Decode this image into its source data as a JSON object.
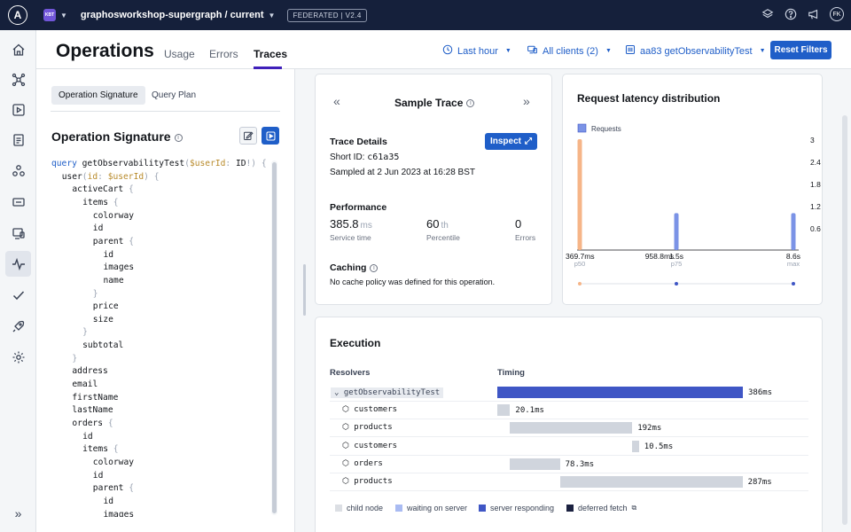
{
  "topbar": {
    "logo": "A",
    "org_badge": "KBT",
    "graph_name": "graphosworkshop-supergraph / current",
    "federated_badge": "FEDERATED | V2.4",
    "avatar": "FK",
    "icons": [
      "layers-icon",
      "help-icon",
      "megaphone-icon"
    ]
  },
  "nav": {
    "icons": [
      "home-icon",
      "schema-icon",
      "explorer-icon",
      "checks-icon",
      "subgraphs-icon",
      "clients-icon",
      "monitor-icon",
      "insights-icon",
      "check-icon",
      "launch-icon",
      "settings-icon"
    ],
    "expand_icon": "double-chevron-right-icon"
  },
  "header": {
    "title": "Operations",
    "tabs": [
      {
        "label": "Usage",
        "active": false
      },
      {
        "label": "Errors",
        "active": false
      },
      {
        "label": "Traces",
        "active": true
      }
    ],
    "filters": {
      "time": "Last hour",
      "clients": "All clients (2)",
      "operation": "aa83 getObservabilityTest"
    },
    "reset_label": "Reset Filters"
  },
  "left_panel": {
    "subtabs": [
      "Operation Signature",
      "Query Plan"
    ],
    "active_subtab": "Operation Signature",
    "title": "Operation Signature",
    "code_lines": [
      {
        "indent": 0,
        "parts": [
          [
            "kw",
            "query "
          ],
          [
            "t",
            "getObservabilityTest"
          ],
          [
            "pun",
            "("
          ],
          [
            "var",
            "$userId"
          ],
          [
            "pun",
            ": "
          ],
          [
            "t",
            "ID"
          ],
          [
            "pun",
            "!) {"
          ]
        ]
      },
      {
        "indent": 1,
        "parts": [
          [
            "t",
            "user"
          ],
          [
            "pun",
            "("
          ],
          [
            "var",
            "id"
          ],
          [
            "pun",
            ": "
          ],
          [
            "var",
            "$userId"
          ],
          [
            "pun",
            ") {"
          ]
        ]
      },
      {
        "indent": 2,
        "parts": [
          [
            "t",
            "activeCart "
          ],
          [
            "pun",
            "{"
          ]
        ]
      },
      {
        "indent": 3,
        "parts": [
          [
            "t",
            "items "
          ],
          [
            "pun",
            "{"
          ]
        ]
      },
      {
        "indent": 4,
        "parts": [
          [
            "t",
            "colorway"
          ]
        ]
      },
      {
        "indent": 4,
        "parts": [
          [
            "t",
            "id"
          ]
        ]
      },
      {
        "indent": 4,
        "parts": [
          [
            "t",
            "parent "
          ],
          [
            "pun",
            "{"
          ]
        ]
      },
      {
        "indent": 5,
        "parts": [
          [
            "t",
            "id"
          ]
        ]
      },
      {
        "indent": 5,
        "parts": [
          [
            "t",
            "images"
          ]
        ]
      },
      {
        "indent": 5,
        "parts": [
          [
            "t",
            "name"
          ]
        ]
      },
      {
        "indent": 4,
        "parts": [
          [
            "pun",
            "}"
          ]
        ]
      },
      {
        "indent": 4,
        "parts": [
          [
            "t",
            "price"
          ]
        ]
      },
      {
        "indent": 4,
        "parts": [
          [
            "t",
            "size"
          ]
        ]
      },
      {
        "indent": 3,
        "parts": [
          [
            "pun",
            "}"
          ]
        ]
      },
      {
        "indent": 3,
        "parts": [
          [
            "t",
            "subtotal"
          ]
        ]
      },
      {
        "indent": 2,
        "parts": [
          [
            "pun",
            "}"
          ]
        ]
      },
      {
        "indent": 2,
        "parts": [
          [
            "t",
            "address"
          ]
        ]
      },
      {
        "indent": 2,
        "parts": [
          [
            "t",
            "email"
          ]
        ]
      },
      {
        "indent": 2,
        "parts": [
          [
            "t",
            "firstName"
          ]
        ]
      },
      {
        "indent": 2,
        "parts": [
          [
            "t",
            "lastName"
          ]
        ]
      },
      {
        "indent": 2,
        "parts": [
          [
            "t",
            "orders "
          ],
          [
            "pun",
            "{"
          ]
        ]
      },
      {
        "indent": 3,
        "parts": [
          [
            "t",
            "id"
          ]
        ]
      },
      {
        "indent": 3,
        "parts": [
          [
            "t",
            "items "
          ],
          [
            "pun",
            "{"
          ]
        ]
      },
      {
        "indent": 4,
        "parts": [
          [
            "t",
            "colorway"
          ]
        ]
      },
      {
        "indent": 4,
        "parts": [
          [
            "t",
            "id"
          ]
        ]
      },
      {
        "indent": 4,
        "parts": [
          [
            "t",
            "parent "
          ],
          [
            "pun",
            "{"
          ]
        ]
      },
      {
        "indent": 5,
        "parts": [
          [
            "t",
            "id"
          ]
        ]
      },
      {
        "indent": 5,
        "parts": [
          [
            "t",
            "images"
          ]
        ]
      }
    ]
  },
  "sample_trace": {
    "title": "Sample Trace",
    "details_heading": "Trace Details",
    "inspect_label": "Inspect",
    "short_id_label": "Short ID:",
    "short_id": "c61a35",
    "sampled_at": "Sampled at 2 Jun 2023 at 16:28 BST",
    "performance_heading": "Performance",
    "service_time_value": "385.8",
    "service_time_unit": "ms",
    "service_time_label": "Service time",
    "percentile_value": "60",
    "percentile_unit": "th",
    "percentile_label": "Percentile",
    "errors_value": "0",
    "errors_label": "Errors",
    "caching_heading": "Caching",
    "caching_text": "No cache policy was defined for this operation."
  },
  "latency": {
    "title": "Request latency distribution"
  },
  "chart_data": {
    "type": "bar",
    "title": "Request latency distribution",
    "legend": [
      "Requests"
    ],
    "legend_position": "top-left",
    "y_ticks": [
      "3",
      "2.4",
      "1.8",
      "1.2",
      "0.6"
    ],
    "ylim": [
      0,
      3
    ],
    "x_tick_labels": [
      "369.7ms",
      "958.8ms",
      "1.5s",
      "8.6s"
    ],
    "x_tick_sublabels": [
      "p50",
      "",
      "p75",
      "max"
    ],
    "xlim_ms": [
      369.7,
      8600
    ],
    "bars": [
      {
        "x_ms": 369.7,
        "value": 3,
        "color": "#f6b588"
      },
      {
        "x_ms": 1500,
        "value": 1,
        "color": "#7b93e6"
      },
      {
        "x_ms": 8600,
        "value": 1,
        "color": "#7b93e6"
      }
    ],
    "percentile_markers_ms": [
      369.7,
      1500,
      8600
    ]
  },
  "execution": {
    "title": "Execution",
    "col_resolvers": "Resolvers",
    "col_timing": "Timing",
    "total_ms": 386,
    "rows": [
      {
        "name": "getObservabilityTest",
        "root": true,
        "start_ms": 0,
        "duration_ms": 386,
        "label": "386ms",
        "color": "#3f56c5"
      },
      {
        "name": "customers",
        "root": false,
        "start_ms": 0,
        "duration_ms": 20.1,
        "label": "20.1ms",
        "color": "#d0d5dd"
      },
      {
        "name": "products",
        "root": false,
        "start_ms": 20.1,
        "duration_ms": 192,
        "label": "192ms",
        "color": "#d0d5dd"
      },
      {
        "name": "customers",
        "root": false,
        "start_ms": 212.1,
        "duration_ms": 10.5,
        "label": "10.5ms",
        "color": "#d0d5dd"
      },
      {
        "name": "orders",
        "root": false,
        "start_ms": 20.1,
        "duration_ms": 78.3,
        "label": "78.3ms",
        "color": "#d0d5dd"
      },
      {
        "name": "products",
        "root": false,
        "start_ms": 98.4,
        "duration_ms": 287,
        "label": "287ms",
        "color": "#d0d5dd"
      }
    ],
    "legend": [
      {
        "label": "child node",
        "color": "#dcdfe4"
      },
      {
        "label": "waiting on server",
        "color": "#a9bbf2"
      },
      {
        "label": "server responding",
        "color": "#3f56c5"
      },
      {
        "label": "deferred fetch",
        "color": "#1b2140"
      }
    ]
  }
}
